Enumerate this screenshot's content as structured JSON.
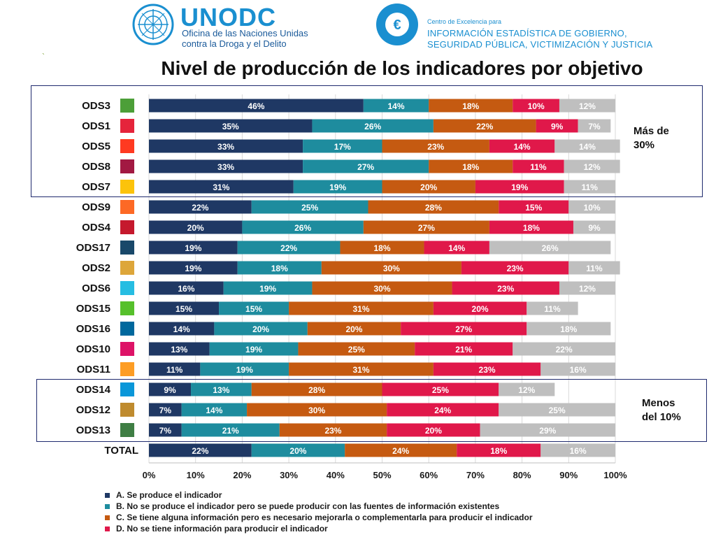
{
  "header": {
    "unodc_name": "UNODC",
    "unodc_sub1": "Oficina de las Naciones Unidas",
    "unodc_sub2": "contra la Droga y el Delito",
    "ce_small": "Centro de Excelencia para",
    "ce_line1": "INFORMACIÓN ESTADÍSTICA DE GOBIERNO,",
    "ce_line2": "SEGURIDAD PÚBLICA, VICTIMIZACIÓN Y JUSTICIA",
    "ce_emblem_glyph": "€",
    "tick_mark": "`"
  },
  "highlights": {
    "top_note_line1": "Más de",
    "top_note_line2": "30%",
    "bottom_note_line1": "Menos",
    "bottom_note_line2": "del 10%"
  },
  "colors": {
    "A": "#1f3864",
    "B": "#1e8c9e",
    "C": "#c55a11",
    "D": "#e0184a",
    "E": "#bfbfbf",
    "brand_blue": "#1a8fd0",
    "box_border": "#1f2a6e"
  },
  "chart_data": {
    "type": "bar",
    "orientation": "horizontal",
    "stacked": "100%",
    "title": "Nivel de producción de los indicadores por objetivo",
    "categories": [
      "ODS3",
      "ODS1",
      "ODS5",
      "ODS8",
      "ODS7",
      "ODS9",
      "ODS4",
      "ODS17",
      "ODS2",
      "ODS6",
      "ODS15",
      "ODS16",
      "ODS10",
      "ODS11",
      "ODS14",
      "ODS12",
      "ODS13",
      "TOTAL"
    ],
    "category_icons": [
      "ods3-icon",
      "ods1-icon",
      "ods5-icon",
      "ods8-icon",
      "ods7-icon",
      "ods9-icon",
      "ods4-icon",
      "ods17-icon",
      "ods2-icon",
      "ods6-icon",
      "ods15-icon",
      "ods16-icon",
      "ods10-icon",
      "ods11-icon",
      "ods14-icon",
      "ods12-icon",
      "ods13-icon",
      ""
    ],
    "icon_colors": [
      "#4c9f38",
      "#e5243b",
      "#ff3a21",
      "#a21942",
      "#fcc30b",
      "#fd6925",
      "#c5192d",
      "#19486a",
      "#dda63a",
      "#26bde2",
      "#56c02b",
      "#00689d",
      "#dd1367",
      "#fd9d24",
      "#0a97d9",
      "#bf8b2e",
      "#3f7e44",
      ""
    ],
    "series": [
      {
        "name": "A. Se produce el indicador",
        "color": "#1f3864",
        "values": [
          46,
          35,
          33,
          33,
          31,
          22,
          20,
          19,
          19,
          16,
          15,
          14,
          13,
          11,
          9,
          7,
          7,
          22
        ],
        "labels": [
          "46%",
          "35%",
          "33%",
          "33%",
          "31%",
          "22%",
          "20%",
          "19%",
          "19%",
          "16%",
          "15%",
          "14%",
          "13%",
          "11%",
          "9%",
          "7%",
          "7%",
          "22%"
        ]
      },
      {
        "name": "B. No se produce el indicador pero se puede producir con las fuentes de información existentes",
        "color": "#1e8c9e",
        "values": [
          14,
          26,
          17,
          27,
          19,
          25,
          26,
          22,
          18,
          19,
          15,
          20,
          19,
          19,
          13,
          14,
          21,
          20
        ],
        "labels": [
          "14%",
          "26%",
          "17%",
          "27%",
          "19%",
          "25%",
          "26%",
          "22%",
          "18%",
          "19%",
          "15%",
          "20%",
          "19%",
          "19%",
          "13%",
          "14%",
          "21%",
          "20%"
        ]
      },
      {
        "name": "C. Se tiene alguna información pero es necesario mejorarla o complementarla para producir el indicador",
        "color": "#c55a11",
        "values": [
          18,
          22,
          23,
          18,
          20,
          28,
          27,
          18,
          30,
          30,
          31,
          20,
          25,
          31,
          28,
          30,
          23,
          24
        ],
        "labels": [
          "18%",
          "22%",
          "23%",
          "18%",
          "20%",
          "28%",
          "27%",
          "18%",
          "30%",
          "30%",
          "31%",
          "20%",
          "25%",
          "31%",
          "28%",
          "30%",
          "23%",
          "24%"
        ]
      },
      {
        "name": "D. No se tiene información para producir el indicador",
        "color": "#e0184a",
        "values": [
          10,
          9,
          14,
          11,
          19,
          15,
          18,
          14,
          23,
          23,
          20,
          27,
          21,
          23,
          25,
          24,
          20,
          18
        ],
        "labels": [
          "10%",
          "9%",
          "14%",
          "11%",
          "19%",
          "15%",
          "18%",
          "14%",
          "23%",
          "23%",
          "20%",
          "27%",
          "21%",
          "23%",
          "25%",
          "24%",
          "20%",
          "18%"
        ]
      },
      {
        "name": "",
        "color": "#bfbfbf",
        "values": [
          12,
          7,
          14,
          12,
          11,
          10,
          9,
          26,
          11,
          12,
          11,
          18,
          22,
          16,
          12,
          25,
          29,
          16
        ],
        "labels": [
          "12%",
          "7%",
          "14%",
          "12%",
          "11%",
          "10%",
          "9%",
          "26%",
          "11%",
          "12%",
          "11%",
          "18%",
          "22%",
          "16%",
          "12%",
          "25%",
          "29%",
          "16%"
        ]
      }
    ],
    "xlim": [
      0,
      100
    ],
    "xticks": [
      "0%",
      "10%",
      "20%",
      "30%",
      "40%",
      "50%",
      "60%",
      "70%",
      "80%",
      "90%",
      "100%"
    ],
    "grid": true,
    "legend": "bottom"
  }
}
